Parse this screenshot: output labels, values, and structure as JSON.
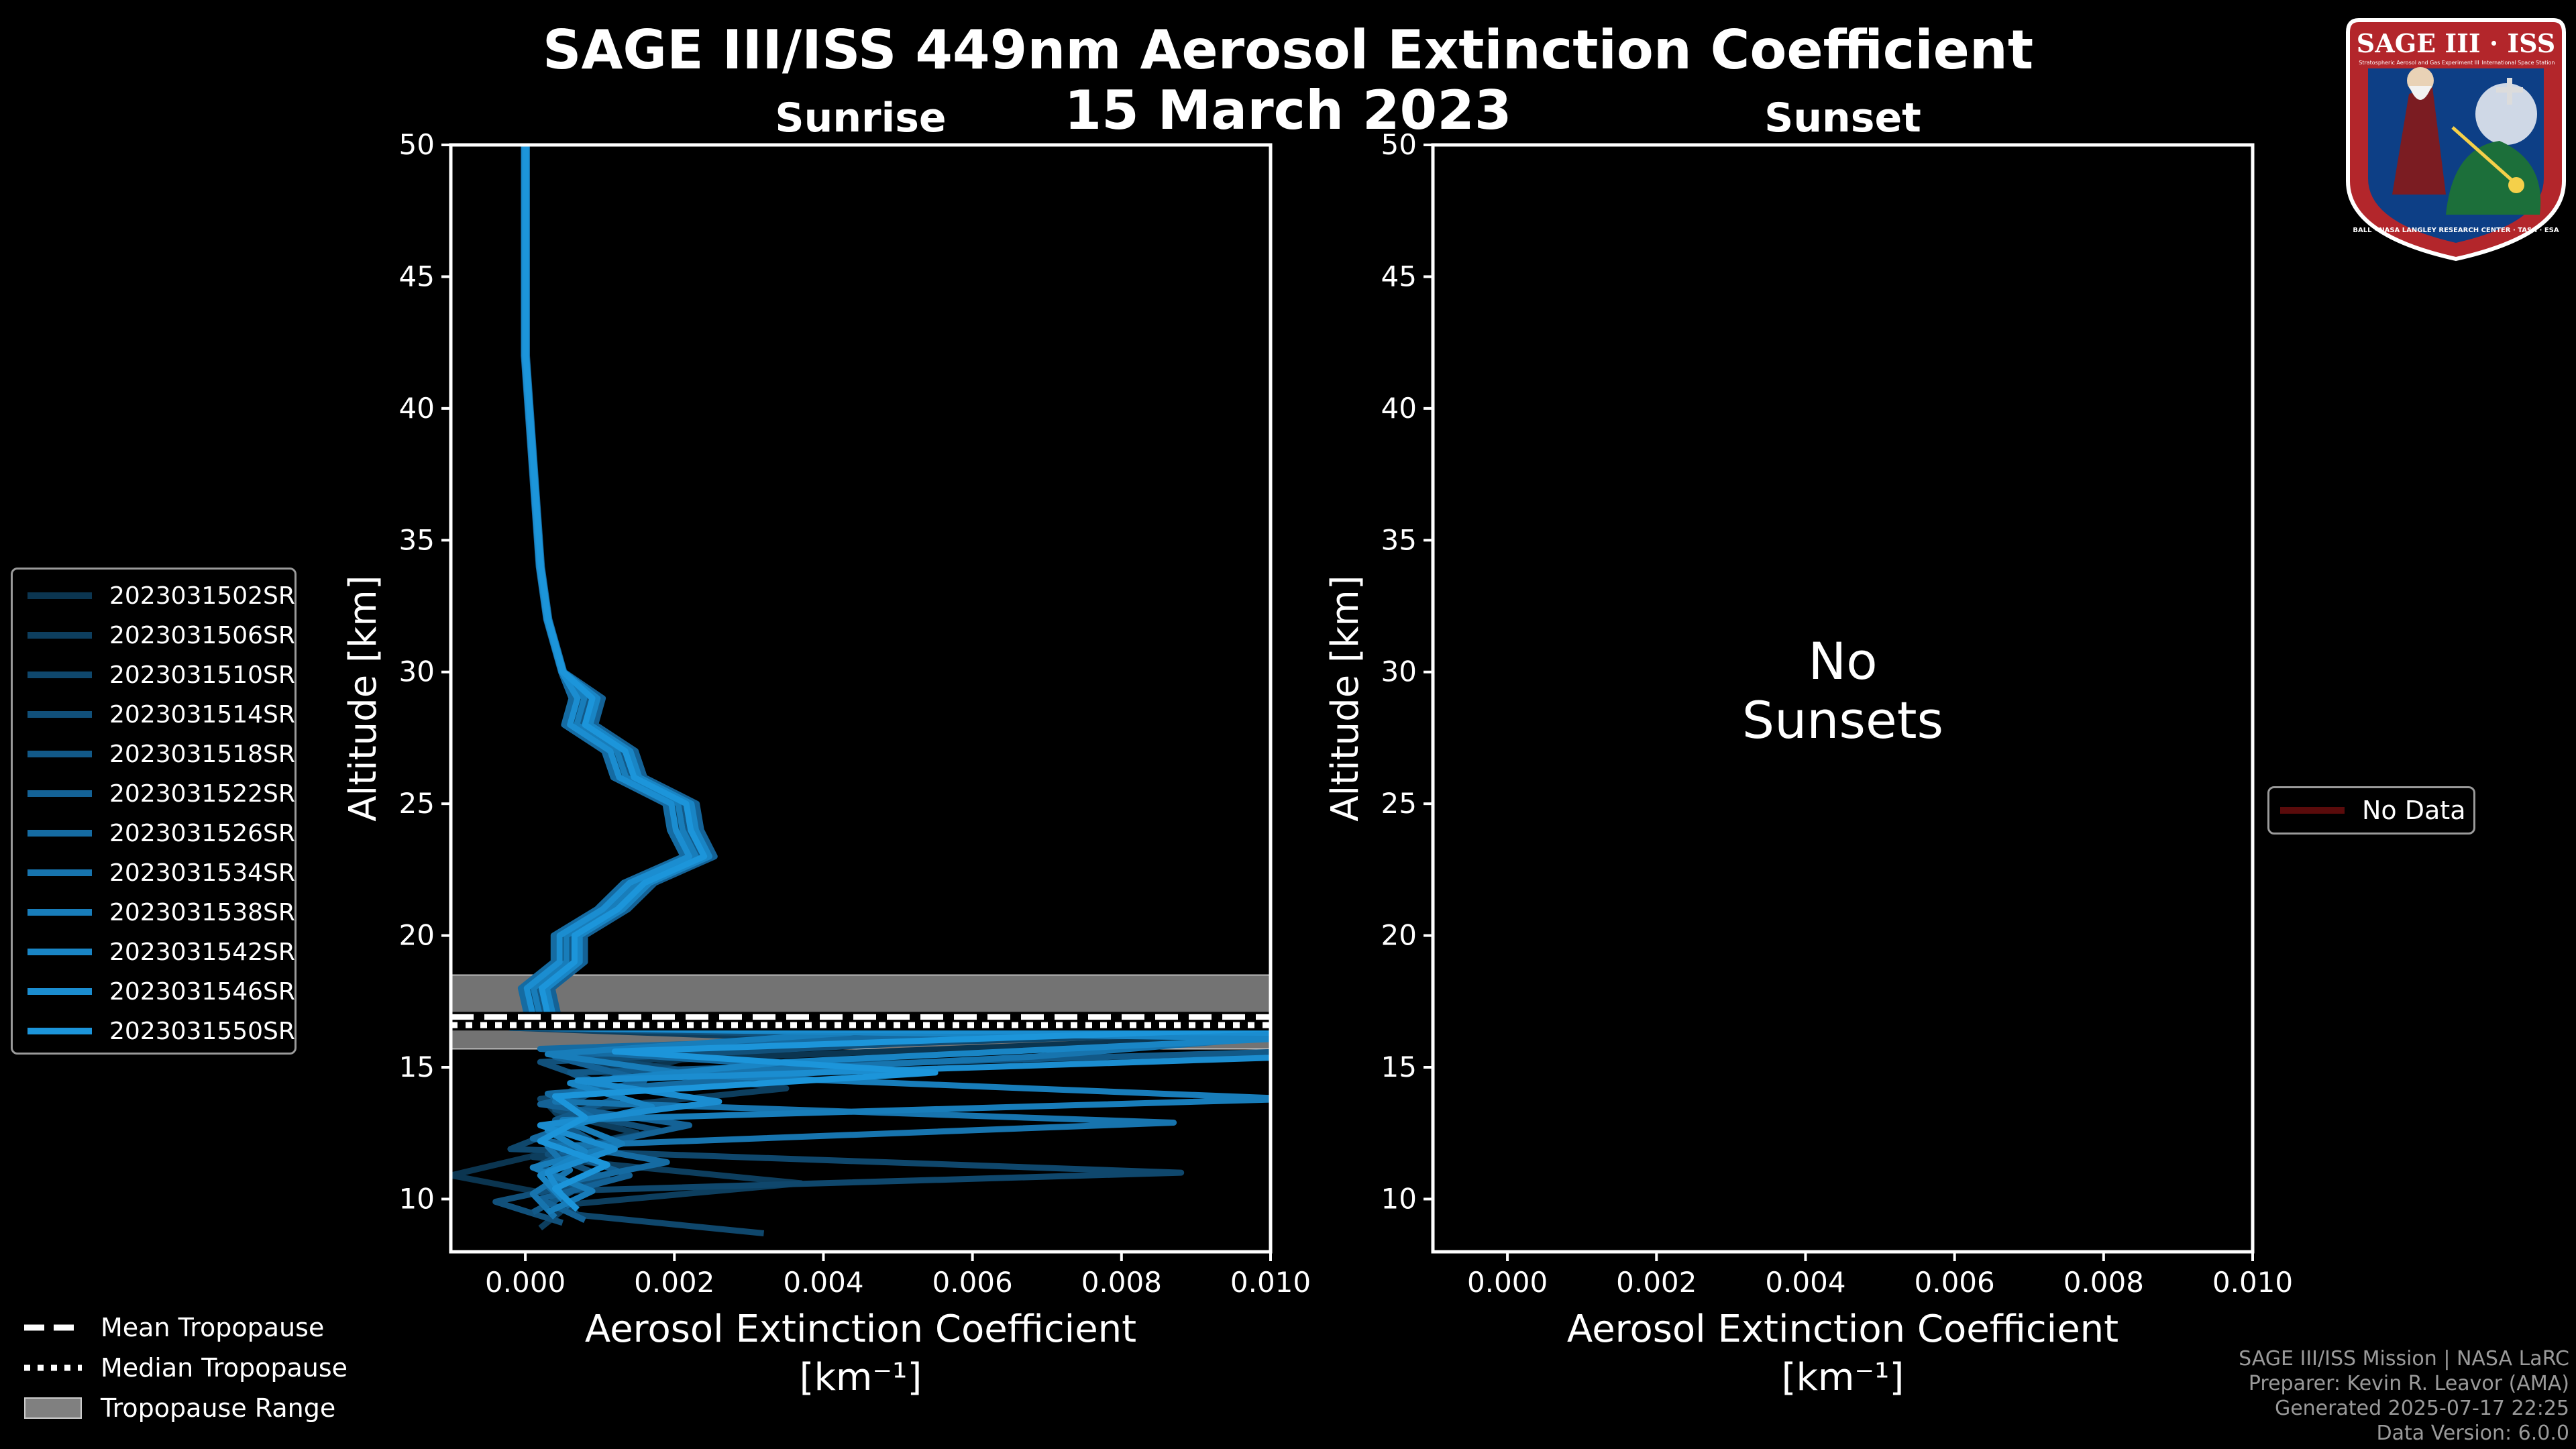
{
  "title_line1": "SAGE III/ISS 449nm Aerosol Extinction Coefficient",
  "title_line2": "15 March 2023",
  "logo": {
    "top_text": "SAGE III · ISS",
    "ring_text": "BALL · NASA LANGLEY RESEARCH CENTER · TAS-I · ESA",
    "small_left": "Stratospheric Aerosol and Gas Experiment III",
    "small_right": "International Space Station"
  },
  "chart_data": [
    {
      "type": "line",
      "title": "Sunrise",
      "xlabel": "Aerosol Extinction Coefficient",
      "xlabel_unit": "[km⁻¹]",
      "ylabel": "Altitude [km]",
      "xlim": [
        -0.001,
        0.01
      ],
      "ylim": [
        8,
        50
      ],
      "xticks": [
        0.0,
        0.002,
        0.004,
        0.006,
        0.008,
        0.01
      ],
      "xtick_labels": [
        "0.000",
        "0.002",
        "0.004",
        "0.006",
        "0.008",
        "0.010"
      ],
      "yticks": [
        10,
        15,
        20,
        25,
        30,
        35,
        40,
        45,
        50
      ],
      "tropopause": {
        "mean": 16.9,
        "median": 16.6,
        "range": [
          15.7,
          18.5
        ]
      },
      "base_profile": {
        "altitude": [
          50,
          46,
          42,
          38,
          34,
          32,
          30,
          29,
          28,
          27,
          26,
          25,
          24,
          23,
          22,
          21,
          20,
          19,
          18,
          17,
          16.5
        ],
        "extinction": [
          0.0,
          0.0,
          0.0,
          0.0001,
          0.0002,
          0.0003,
          0.0005,
          0.0007,
          0.0009,
          0.0012,
          0.0015,
          0.0019,
          0.0022,
          0.0022,
          0.0017,
          0.0011,
          0.0007,
          0.0004,
          0.0002,
          0.0001,
          0.0001
        ]
      },
      "series": [
        {
          "name": "2023031502SR",
          "color": "#0b3550",
          "shift": 0.00012,
          "low": [
            [
              16.2,
              0.0102
            ],
            [
              15.3,
              0.0021
            ],
            [
              14.4,
              0.0008
            ],
            [
              13.6,
              0.0003
            ],
            [
              12.7,
              0.0006
            ],
            [
              11.7,
              0.0002
            ],
            [
              10.9,
              -0.001
            ],
            [
              10.2,
              0.0003
            ]
          ]
        },
        {
          "name": "2023031506SR",
          "color": "#0d3e5e",
          "shift": -8e-05,
          "low": [
            [
              16.0,
              0.0046
            ],
            [
              15.1,
              0.0009
            ],
            [
              14.2,
              0.0035
            ],
            [
              13.3,
              0.0004
            ],
            [
              12.5,
              0.0015
            ],
            [
              11.6,
              0.0001
            ],
            [
              10.6,
              0.0037
            ],
            [
              9.8,
              0.0006
            ],
            [
              8.9,
              0.0002
            ]
          ]
        },
        {
          "name": "2023031510SR",
          "color": "#0f476c",
          "shift": 0.00018,
          "low": [
            [
              16.4,
              0.0105
            ],
            [
              15.5,
              0.0005
            ],
            [
              14.6,
              0.0029
            ],
            [
              13.8,
              0.0002
            ],
            [
              12.9,
              0.0007
            ],
            [
              11.9,
              -0.0002
            ],
            [
              11.0,
              0.0088
            ],
            [
              10.3,
              0.0004
            ],
            [
              9.4,
              0.0007
            ],
            [
              8.7,
              0.0032
            ]
          ]
        },
        {
          "name": "2023031514SR",
          "color": "#11507a",
          "shift": -0.00015,
          "low": [
            [
              16.1,
              0.0064
            ],
            [
              15.2,
              0.0002
            ],
            [
              14.3,
              0.0011
            ],
            [
              13.4,
              0.0004
            ],
            [
              12.6,
              0.0018
            ],
            [
              11.7,
              0.0003
            ],
            [
              10.8,
              0.0011
            ],
            [
              9.9,
              -0.0004
            ],
            [
              9.1,
              0.0005
            ]
          ]
        },
        {
          "name": "2023031518SR",
          "color": "#125988",
          "shift": 5e-05,
          "low": [
            [
              16.5,
              0.0102
            ],
            [
              15.6,
              0.0103
            ],
            [
              14.8,
              0.0006
            ],
            [
              13.9,
              0.0013
            ],
            [
              13.0,
              0.0004
            ],
            [
              12.2,
              0.0009
            ],
            [
              11.3,
              0.0002
            ],
            [
              10.4,
              0.0007
            ],
            [
              9.5,
              0.0001
            ]
          ]
        },
        {
          "name": "2023031522SR",
          "color": "#146296",
          "shift": 0.00022,
          "low": [
            [
              16.3,
              0.0057
            ],
            [
              15.4,
              0.0004
            ],
            [
              14.5,
              0.0016
            ],
            [
              13.6,
              0.0002
            ],
            [
              12.8,
              0.0022
            ],
            [
              11.8,
              0.0005
            ],
            [
              10.9,
              0.0014
            ],
            [
              10.0,
              0.0002
            ],
            [
              9.2,
              0.0008
            ]
          ]
        },
        {
          "name": "2023031526SR",
          "color": "#156ba2",
          "shift": -0.0002,
          "low": [
            [
              16.6,
              0.0101
            ],
            [
              15.7,
              0.0002
            ],
            [
              14.9,
              0.0044
            ],
            [
              14.0,
              0.0003
            ],
            [
              13.1,
              0.0009
            ],
            [
              12.3,
              0.0001
            ],
            [
              11.4,
              0.0019
            ],
            [
              10.5,
              0.0003
            ],
            [
              9.7,
              0.0006
            ]
          ]
        },
        {
          "name": "2023031534SR",
          "color": "#1774ae",
          "shift": 0.0001,
          "low": [
            [
              16.2,
              0.0103
            ],
            [
              15.4,
              0.0068
            ],
            [
              14.6,
              0.0012
            ],
            [
              13.7,
              0.0004
            ],
            [
              12.9,
              0.0087
            ],
            [
              12.0,
              0.0003
            ],
            [
              11.1,
              0.0006
            ],
            [
              10.2,
              0.0001
            ],
            [
              9.3,
              0.0004
            ]
          ]
        },
        {
          "name": "2023031538SR",
          "color": "#187dba",
          "shift": -3e-05,
          "low": [
            [
              16.4,
              0.0048
            ],
            [
              15.5,
              0.0003
            ],
            [
              14.7,
              0.0023
            ],
            [
              13.8,
              0.0103
            ],
            [
              13.0,
              0.0005
            ],
            [
              12.1,
              0.0013
            ],
            [
              11.2,
              0.0001
            ],
            [
              10.3,
              0.0009
            ],
            [
              9.5,
              0.0003
            ]
          ]
        },
        {
          "name": "2023031542SR",
          "color": "#1985c5",
          "shift": 0.00015,
          "low": [
            [
              16.1,
              0.0102
            ],
            [
              15.2,
              0.0035
            ],
            [
              14.4,
              0.0006
            ],
            [
              13.5,
              0.0017
            ],
            [
              12.6,
              0.0003
            ],
            [
              11.8,
              0.0008
            ],
            [
              10.9,
              0.0002
            ],
            [
              10.0,
              0.0005
            ]
          ]
        },
        {
          "name": "2023031546SR",
          "color": "#1b8dd0",
          "shift": -0.00012,
          "low": [
            [
              16.3,
              0.0104
            ],
            [
              15.4,
              0.0104
            ],
            [
              14.5,
              0.0007
            ],
            [
              13.7,
              0.0026
            ],
            [
              12.8,
              0.0002
            ],
            [
              11.9,
              0.0012
            ],
            [
              11.0,
              0.0003
            ],
            [
              10.1,
              0.0005
            ]
          ]
        },
        {
          "name": "2023031550SR",
          "color": "#1c95da",
          "shift": 8e-05,
          "low": [
            [
              16.5,
              0.0103
            ],
            [
              15.6,
              0.0012
            ],
            [
              14.8,
              0.0055
            ],
            [
              13.9,
              0.0004
            ],
            [
              13.1,
              0.0008
            ],
            [
              12.2,
              0.0002
            ],
            [
              11.3,
              0.0011
            ],
            [
              10.4,
              0.0004
            ],
            [
              9.6,
              0.0007
            ]
          ]
        }
      ]
    },
    {
      "type": "line",
      "title": "Sunset",
      "xlabel": "Aerosol Extinction Coefficient",
      "xlabel_unit": "[km⁻¹]",
      "ylabel": "Altitude [km]",
      "xlim": [
        -0.001,
        0.01
      ],
      "ylim": [
        8,
        50
      ],
      "xticks": [
        0.0,
        0.002,
        0.004,
        0.006,
        0.008,
        0.01
      ],
      "xtick_labels": [
        "0.000",
        "0.002",
        "0.004",
        "0.006",
        "0.008",
        "0.010"
      ],
      "yticks": [
        10,
        15,
        20,
        25,
        30,
        35,
        40,
        45,
        50
      ],
      "message_line1": "No",
      "message_line2": "Sunsets",
      "series": [],
      "legend": [
        {
          "name": "No Data",
          "color": "#5a0b0b"
        }
      ]
    }
  ],
  "bottom_legend": [
    {
      "label": "Mean Tropopause",
      "style": "dashed"
    },
    {
      "label": "Median Tropopause",
      "style": "dotted"
    },
    {
      "label": "Tropopause Range",
      "style": "patch",
      "color": "#808080"
    }
  ],
  "footer": {
    "line1": "SAGE III/ISS Mission | NASA LaRC",
    "line2": "Preparer: Kevin R. Leavor (AMA)",
    "line3": "Generated 2025-07-17 22:25",
    "line4": "Data Version: 6.0.0"
  }
}
